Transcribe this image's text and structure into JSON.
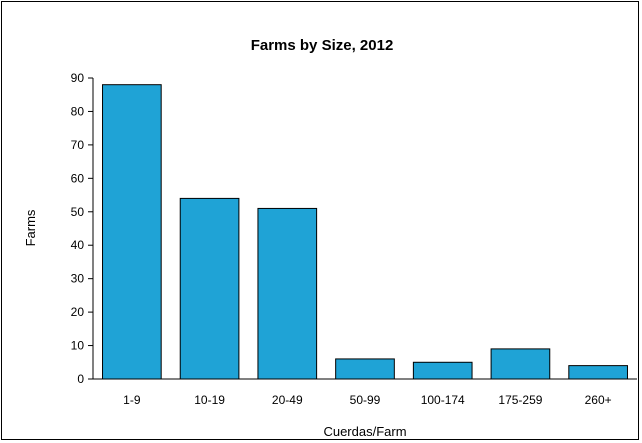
{
  "chart_data": {
    "type": "bar",
    "title": "Farms by Size, 2012",
    "xlabel": "Cuerdas/Farm",
    "ylabel": "Farms",
    "categories": [
      "1-9",
      "10-19",
      "20-49",
      "50-99",
      "100-174",
      "175-259",
      "260+"
    ],
    "values": [
      88,
      54,
      51,
      6,
      5,
      9,
      4
    ],
    "ylim": [
      0,
      90
    ],
    "yticks": [
      "0",
      "10",
      "20",
      "30",
      "40",
      "50",
      "60",
      "70",
      "80",
      "90"
    ],
    "grid": false,
    "legend": "none",
    "colors": {
      "bar_fill": "#1fa3d6",
      "bar_stroke": "#000000"
    }
  }
}
